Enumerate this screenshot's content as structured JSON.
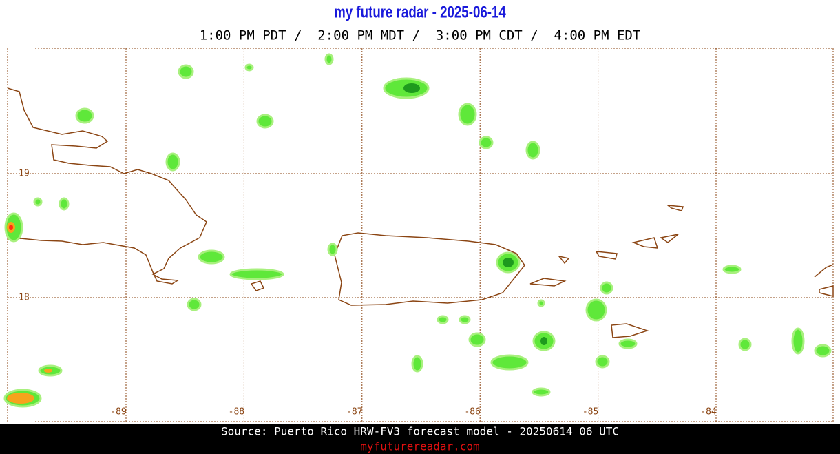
{
  "header": {
    "title": "my future radar - 2025-06-14",
    "subtitle": "1:00 PM PDT /  2:00 PM MDT /  3:00 PM CDT /  4:00 PM EDT"
  },
  "map": {
    "lon_ticks": [
      -89,
      -88,
      -87,
      -86,
      -85,
      -84
    ],
    "lat_ticks": [
      19,
      18
    ]
  },
  "footer": {
    "source": "Source: Puerto Rico HRW-FV3 forecast model - 20250614 06 UTC",
    "url": "myfuturereadar.com"
  }
}
